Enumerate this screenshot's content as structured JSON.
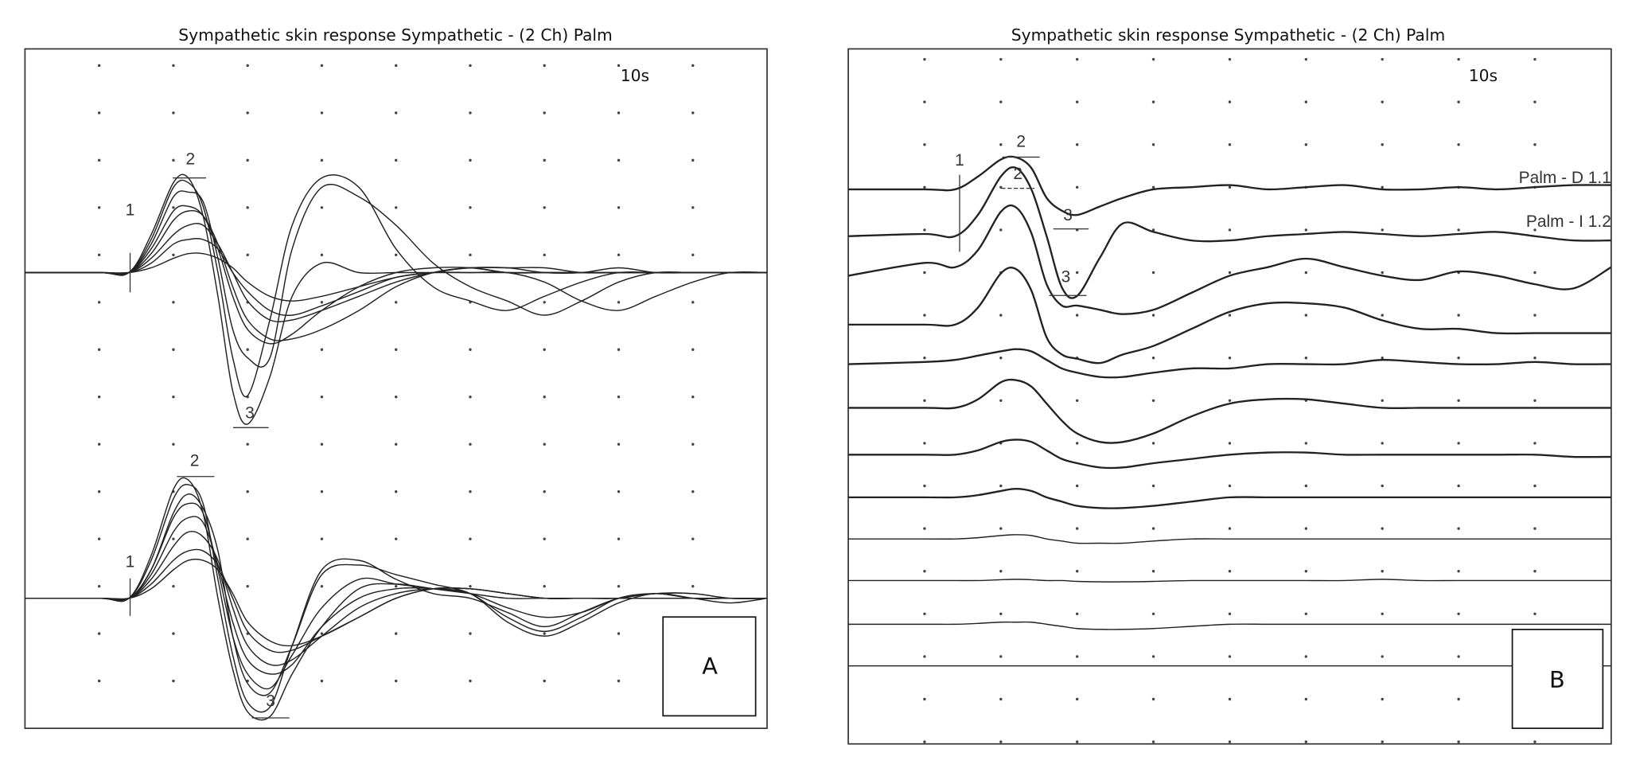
{
  "chart_data": [
    {
      "panel": "A",
      "type": "line",
      "title": "Sympathetic skin response Sympathetic - (2 Ch) Palm",
      "sweep_label": "10s",
      "panel_label": "A",
      "grid": "dots",
      "xlim": [
        0,
        10
      ],
      "x": [
        0,
        1,
        1.4,
        1.7,
        2.0,
        2.2,
        2.4,
        2.6,
        2.8,
        3.0,
        3.3,
        3.6,
        4.0,
        4.5,
        5,
        5.5,
        6,
        6.5,
        7,
        7.5,
        8,
        8.5,
        9,
        9.5,
        10
      ],
      "markers": {
        "ch1": [
          "1",
          "2",
          "3"
        ],
        "ch2": [
          "1",
          "2",
          "3"
        ]
      },
      "series": [
        {
          "channel": 1,
          "values": [
            0,
            0,
            0,
            0.8,
            1.9,
            2.0,
            1.2,
            -0.5,
            -2.5,
            -3.2,
            -2.2,
            -0.5,
            0.2,
            0,
            0,
            0,
            0,
            0,
            0,
            0,
            0,
            0,
            0,
            0,
            0
          ]
        },
        {
          "channel": 1,
          "values": [
            0,
            0,
            0,
            0.7,
            1.8,
            1.9,
            1.4,
            0,
            -1.8,
            -2.6,
            -1.0,
            1.0,
            2.0,
            1.8,
            0.5,
            -0.3,
            -0.6,
            -0.8,
            -0.5,
            -0.2,
            0,
            0,
            0,
            0,
            0
          ]
        },
        {
          "channel": 1,
          "values": [
            0,
            0,
            0,
            0.5,
            1.3,
            1.4,
            1.2,
            0.5,
            -0.5,
            -1.2,
            -1.5,
            -1.3,
            -0.8,
            -0.3,
            0,
            0.1,
            0.1,
            0,
            0,
            0,
            0,
            0,
            0,
            0,
            0
          ]
        },
        {
          "channel": 1,
          "values": [
            0,
            0,
            0,
            0.4,
            1.1,
            1.3,
            1.2,
            0.6,
            -0.3,
            -1.0,
            -1.4,
            -1.4,
            -1.2,
            -0.8,
            -0.3,
            0,
            0.1,
            0.1,
            0,
            0,
            0.1,
            0,
            0,
            0,
            0
          ]
        },
        {
          "channel": 1,
          "values": [
            0,
            0,
            0,
            0.3,
            0.8,
            1.0,
            1.0,
            0.6,
            0,
            -0.6,
            -1.0,
            -1.0,
            -0.8,
            -0.5,
            -0.2,
            0,
            0.1,
            0.1,
            0.1,
            0,
            0,
            0,
            0,
            0,
            0
          ]
        },
        {
          "channel": 1,
          "values": [
            0,
            0,
            0,
            0.2,
            0.6,
            0.7,
            0.7,
            0.5,
            0,
            -0.4,
            -0.8,
            -0.9,
            -0.7,
            -0.4,
            -0.1,
            0,
            0.1,
            0,
            0,
            0,
            0,
            0,
            0,
            0,
            0
          ]
        },
        {
          "channel": 1,
          "values": [
            0,
            0,
            0,
            0.1,
            0.3,
            0.4,
            0.4,
            0.3,
            0.1,
            -0.2,
            -0.5,
            -0.6,
            -0.5,
            -0.3,
            -0.1,
            0,
            0,
            0,
            -0.2,
            -0.6,
            -0.8,
            -0.5,
            -0.2,
            0,
            0
          ]
        },
        {
          "channel": 1,
          "values": [
            0,
            0,
            0,
            0.6,
            1.6,
            1.7,
            1.5,
            0.3,
            -1.2,
            -1.8,
            -1.8,
            0.5,
            1.8,
            1.6,
            1.0,
            0.2,
            -0.3,
            -0.6,
            -0.9,
            -0.6,
            -0.2,
            0,
            0,
            0,
            0
          ]
        },
        {
          "channel": 2,
          "values": [
            0,
            0,
            0,
            0.9,
            2.3,
            2.5,
            1.8,
            0,
            -1.5,
            -2.4,
            -2.5,
            -1.6,
            -0.6,
            0.2,
            0.3,
            0.2,
            0.1,
            0,
            0,
            0,
            0,
            0,
            0,
            0,
            0
          ]
        },
        {
          "channel": 2,
          "values": [
            0,
            0,
            0,
            0.8,
            2.1,
            2.4,
            2.0,
            0.4,
            -1.2,
            -2.2,
            -2.3,
            -1.0,
            0.6,
            0.8,
            0.4,
            0.1,
            0,
            -0.3,
            -0.6,
            -0.3,
            0,
            0.1,
            0.1,
            0,
            0
          ]
        },
        {
          "channel": 2,
          "values": [
            0,
            0,
            0,
            0.6,
            1.7,
            2.0,
            1.8,
            0.6,
            -0.8,
            -1.6,
            -1.9,
            -1.2,
            -0.2,
            0.4,
            0.3,
            0.2,
            0.1,
            -0.5,
            -0.8,
            -0.5,
            -0.1,
            0.1,
            0,
            -0.1,
            0
          ]
        },
        {
          "channel": 2,
          "values": [
            0,
            0,
            0,
            0.5,
            1.4,
            1.7,
            1.6,
            0.7,
            -0.5,
            -1.3,
            -1.6,
            -1.4,
            -0.6,
            0,
            0.2,
            0.2,
            0.1,
            -0.2,
            -0.4,
            -0.3,
            0,
            0.1,
            0.1,
            0,
            0
          ]
        },
        {
          "channel": 2,
          "values": [
            0,
            0,
            0,
            0.4,
            1.1,
            1.4,
            1.3,
            0.8,
            -0.2,
            -1.0,
            -1.4,
            -1.3,
            -0.8,
            -0.2,
            0.1,
            0.2,
            0.2,
            0.1,
            0,
            0,
            0,
            0.1,
            0,
            0,
            0
          ]
        },
        {
          "channel": 2,
          "values": [
            0,
            0,
            0,
            0.3,
            0.8,
            1.0,
            1.0,
            0.7,
            0,
            -0.7,
            -1.1,
            -1.1,
            -0.8,
            -0.4,
            0,
            0.2,
            0.2,
            0.1,
            0,
            0,
            0,
            0,
            0,
            0,
            0
          ]
        },
        {
          "channel": 2,
          "values": [
            0,
            0,
            0,
            0.6,
            1.8,
            2.2,
            1.9,
            1.0,
            -0.8,
            -1.8,
            -2.0,
            -1.0,
            0.5,
            0.7,
            0.5,
            0.3,
            0.1,
            -0.4,
            -0.7,
            -0.4,
            0,
            0.1,
            0,
            0,
            0
          ]
        },
        {
          "channel": 2,
          "values": [
            0,
            0,
            0,
            0.2,
            0.6,
            0.8,
            0.8,
            0.6,
            0.1,
            -0.5,
            -0.9,
            -1.0,
            -0.8,
            -0.4,
            0,
            0.2,
            0.2,
            0.1,
            0,
            0,
            0,
            0,
            0,
            0,
            0
          ]
        }
      ]
    },
    {
      "panel": "B",
      "type": "line",
      "title": "Sympathetic skin response Sympathetic - (2 Ch) Palm",
      "sweep_label": "10s",
      "panel_label": "B",
      "grid": "dots",
      "xlim": [
        0,
        10
      ],
      "x": [
        0,
        1,
        1.4,
        1.7,
        2.0,
        2.2,
        2.4,
        2.6,
        2.8,
        3.0,
        3.3,
        3.6,
        4.0,
        4.5,
        5,
        5.5,
        6,
        6.5,
        7,
        7.5,
        8,
        8.5,
        9,
        9.5,
        10
      ],
      "markers": {
        "trace1": [
          "1",
          "2",
          "3"
        ],
        "trace2": [
          "2",
          "3"
        ]
      },
      "series": [
        {
          "name": "Palm - D 1.1",
          "values": [
            0,
            0,
            0,
            0.3,
            0.7,
            0.75,
            0.5,
            -0.2,
            -0.5,
            -0.6,
            -0.4,
            -0.2,
            0,
            0.05,
            0.1,
            0,
            0.05,
            0.1,
            0,
            0,
            0.05,
            0,
            0.05,
            0.1,
            0.1
          ]
        },
        {
          "name": "Palm - I 1.2",
          "values": [
            0,
            0.05,
            0,
            0.5,
            1.4,
            1.6,
            1.1,
            0,
            -1.2,
            -1.4,
            -0.5,
            0.3,
            0.1,
            -0.1,
            -0.1,
            0,
            0.05,
            0.1,
            0.05,
            0,
            0.05,
            0.1,
            0,
            -0.1,
            -0.1
          ]
        },
        {
          "values": [
            0,
            0.3,
            0.2,
            0.6,
            1.5,
            1.6,
            1.0,
            -0.2,
            -0.7,
            -0.7,
            -0.8,
            -0.9,
            -0.8,
            -0.4,
            0,
            0.2,
            0.4,
            0.2,
            0,
            -0.1,
            0.1,
            0,
            -0.2,
            -0.3,
            0.2
          ]
        },
        {
          "values": [
            0,
            0,
            0,
            0.4,
            1.2,
            1.3,
            0.8,
            -0.3,
            -0.7,
            -0.8,
            -0.9,
            -0.7,
            -0.5,
            -0.1,
            0.3,
            0.5,
            0.5,
            0.4,
            0.1,
            -0.1,
            -0.1,
            -0.2,
            -0.2,
            -0.2,
            -0.2
          ]
        },
        {
          "values": [
            0,
            0.05,
            0.1,
            0.2,
            0.3,
            0.35,
            0.3,
            0.1,
            -0.1,
            -0.2,
            -0.3,
            -0.3,
            -0.2,
            -0.1,
            -0.1,
            0,
            0,
            0,
            0.1,
            0.05,
            0,
            0,
            0.05,
            0,
            0
          ]
        },
        {
          "values": [
            0,
            0,
            0,
            0.2,
            0.6,
            0.65,
            0.5,
            0.1,
            -0.3,
            -0.6,
            -0.8,
            -0.8,
            -0.6,
            -0.2,
            0.1,
            0.2,
            0.2,
            0.1,
            0,
            0,
            0,
            0,
            0,
            0,
            0
          ]
        },
        {
          "values": [
            0,
            0,
            0,
            0.1,
            0.3,
            0.35,
            0.3,
            0.1,
            -0.1,
            -0.2,
            -0.3,
            -0.3,
            -0.2,
            -0.1,
            0,
            0.05,
            0.05,
            0,
            0,
            0,
            0,
            0,
            0,
            -0.05,
            -0.05
          ]
        },
        {
          "values": [
            0,
            0,
            0,
            0.05,
            0.15,
            0.2,
            0.15,
            0,
            -0.1,
            -0.2,
            -0.25,
            -0.25,
            -0.2,
            -0.1,
            0,
            0,
            0,
            0,
            0,
            0,
            0,
            0,
            0,
            0,
            0
          ]
        },
        {
          "values": [
            0,
            0,
            0,
            0.03,
            0.08,
            0.1,
            0.08,
            0,
            -0.05,
            -0.1,
            -0.1,
            -0.1,
            -0.05,
            0,
            0,
            0,
            0,
            0,
            0,
            0,
            0,
            0,
            0,
            0,
            0
          ]
        },
        {
          "values": [
            0,
            0,
            0,
            0,
            0.02,
            0.03,
            0.02,
            0,
            0,
            -0.02,
            -0.03,
            -0.03,
            -0.02,
            0,
            0,
            0,
            0,
            0,
            0.03,
            0,
            0,
            0,
            0,
            0,
            0
          ]
        },
        {
          "values": [
            0,
            0,
            0,
            0.02,
            0.05,
            0.05,
            0.05,
            0,
            -0.05,
            -0.1,
            -0.12,
            -0.12,
            -0.1,
            -0.05,
            0,
            0,
            0,
            0,
            0,
            0,
            0,
            0,
            0,
            0,
            0
          ]
        },
        {
          "values": [
            0,
            0,
            0,
            0,
            0,
            0,
            0,
            0,
            0,
            0,
            0,
            0,
            0,
            0,
            0,
            0,
            0,
            0,
            0,
            0,
            0,
            0,
            0,
            0,
            0
          ]
        }
      ]
    }
  ]
}
